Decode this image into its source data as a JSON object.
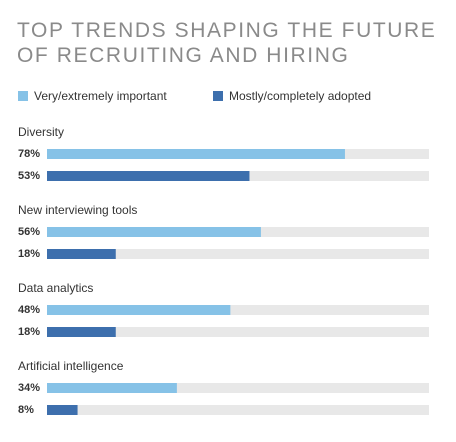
{
  "chart_data": {
    "type": "bar",
    "orientation": "horizontal",
    "title": "TOP TRENDS SHAPING THE FUTURE OF RECRUITING AND HIRING",
    "categories": [
      "Diversity",
      "New interviewing tools",
      "Data analytics",
      "Artificial intelligence"
    ],
    "series": [
      {
        "name": "Very/extremely important",
        "color": "#86c2e7",
        "values": [
          78,
          56,
          48,
          34
        ],
        "value_labels": [
          "78%",
          "56%",
          "48%",
          "34%"
        ]
      },
      {
        "name": "Mostly/completely adopted",
        "color": "#3d6fad",
        "values": [
          53,
          18,
          18,
          8
        ],
        "value_labels": [
          "53%",
          "18%",
          "18%",
          "8%"
        ]
      }
    ],
    "xlim": [
      0,
      100
    ],
    "track_color": "#e8e8e8"
  }
}
